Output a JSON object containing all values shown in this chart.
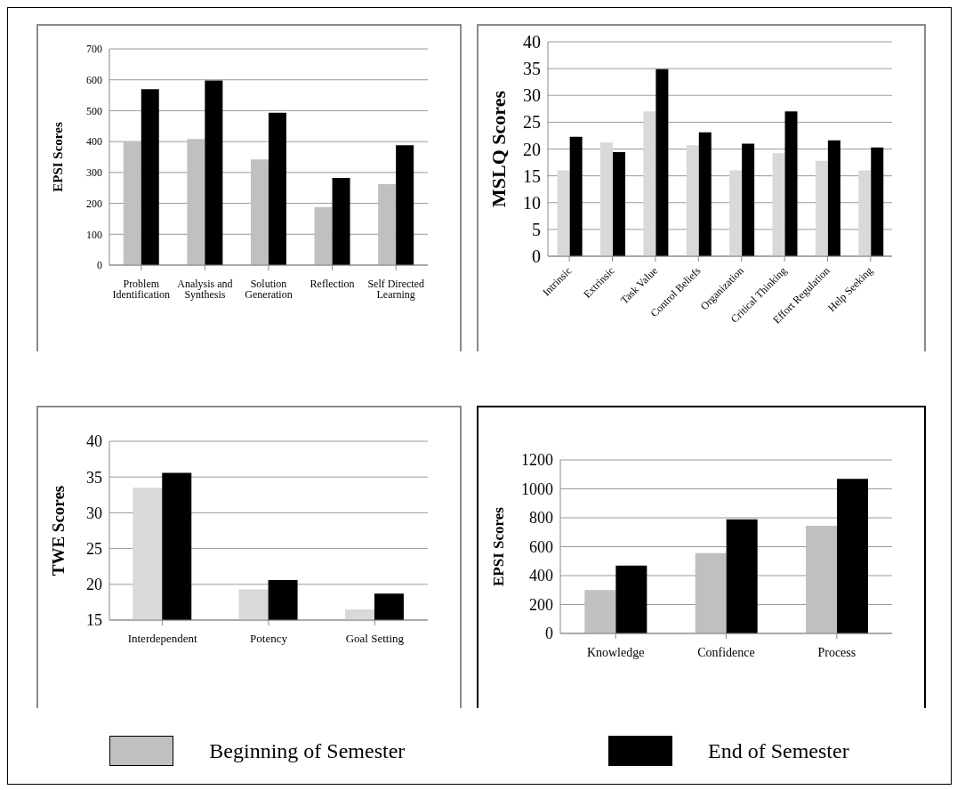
{
  "chart_data": [
    {
      "type": "bar",
      "ylabel": "EPSI Scores",
      "categories": [
        "Problem Identification",
        "Analysis and Synthesis",
        "Solution Generation",
        "Reflection",
        "Self Directed Learning"
      ],
      "series": [
        {
          "name": "Beginning of Semester",
          "color": "#c0c0c0",
          "values": [
            400,
            408,
            342,
            188,
            262
          ]
        },
        {
          "name": "End of Semester",
          "color": "#000000",
          "values": [
            570,
            598,
            493,
            282,
            388
          ]
        }
      ],
      "ylim": [
        0,
        700
      ],
      "yticks": [
        0,
        100,
        200,
        300,
        400,
        500,
        600,
        700
      ],
      "grid": "y",
      "legend": "bottom"
    },
    {
      "type": "bar",
      "ylabel": "MSLQ Scores",
      "categories": [
        "Intrinsic",
        "Extrinsic",
        "Task Value",
        "Control Beliefs",
        "Organization",
        "Critical Thinking",
        "Effort Regulation",
        "Help Seeking"
      ],
      "series": [
        {
          "color": "#d9d9d9",
          "values": [
            16,
            21.2,
            27,
            20.7,
            16,
            19.2,
            17.8,
            16
          ]
        },
        {
          "color": "#000000",
          "values": [
            22.3,
            19.4,
            34.9,
            23.1,
            21,
            27,
            21.6,
            20.3
          ]
        }
      ],
      "ylim": [
        0,
        40
      ],
      "yticks": [
        0,
        5,
        10,
        15,
        20,
        25,
        30,
        35,
        40
      ],
      "grid": "y"
    },
    {
      "type": "bar",
      "ylabel": "TWE Scores",
      "categories": [
        "Interdependent",
        "Potency",
        "Goal Setting"
      ],
      "series": [
        {
          "color": "#d9d9d9",
          "values": [
            33.5,
            19.3,
            16.5
          ]
        },
        {
          "color": "#000000",
          "values": [
            35.6,
            20.6,
            18.7
          ]
        }
      ],
      "ylim": [
        15,
        40
      ],
      "yticks": [
        15,
        20,
        25,
        30,
        35,
        40
      ],
      "grid": "y"
    },
    {
      "type": "bar",
      "ylabel": "EPSI Scores",
      "categories": [
        "Knowledge",
        "Confidence",
        "Process"
      ],
      "series": [
        {
          "color": "#c0c0c0",
          "values": [
            300,
            555,
            745
          ]
        },
        {
          "color": "#000000",
          "values": [
            470,
            790,
            1070
          ]
        }
      ],
      "ylim": [
        0,
        1200
      ],
      "yticks": [
        0,
        200,
        400,
        600,
        800,
        1000,
        1200
      ],
      "grid": "y"
    }
  ]
}
